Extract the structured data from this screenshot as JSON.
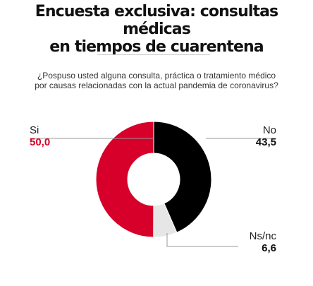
{
  "header": {
    "title_line1": "Encuesta exclusiva: consultas médicas",
    "title_line2": "en tiempos de cuarentena"
  },
  "question": {
    "line1": "¿Pospuso usted alguna consulta, práctica o tratamiento médico",
    "line2": "por causas relacionadas con la actual pandemia de coronavirus?"
  },
  "chart_data": {
    "type": "pie",
    "subtype": "donut",
    "title": "¿Pospuso usted alguna consulta, práctica o tratamiento médico por causas relacionadas con la actual pandemia de coronavirus?",
    "categories": [
      "No",
      "Ns/nc",
      "Si"
    ],
    "values": [
      43.5,
      6.6,
      50.0
    ],
    "value_labels": [
      "43,5",
      "6,6",
      "50,0"
    ],
    "colors": [
      "#000000",
      "#e6e6e6",
      "#d6002a"
    ],
    "start": "top, clockwise",
    "legend": "none"
  },
  "colors": {
    "accent": "#d6002a",
    "text": "#111111",
    "leader": "#999999"
  }
}
